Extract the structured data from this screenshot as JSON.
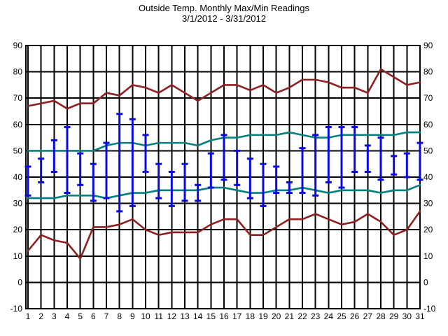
{
  "header": {
    "title": "Outside Temp. Monthly Max/Min Readings",
    "subtitle": "3/1/2012 - 3/31/2012"
  },
  "colors": {
    "background": "#ffffff",
    "grid": "#000000",
    "text": "#000000",
    "bar_blue": "#0a0ae0",
    "normal_teal": "#008080",
    "record_red": "#8f2020"
  },
  "chart_data": {
    "type": "line",
    "title": "Outside Temp. Monthly Max/Min Readings",
    "subtitle": "3/1/2012 - 3/31/2012",
    "xlabel": "",
    "ylabel": "",
    "ylim": [
      -10,
      90
    ],
    "grid": true,
    "legend": "none",
    "y_ticks": [
      90,
      80,
      70,
      60,
      50,
      40,
      30,
      20,
      10,
      0,
      -10
    ],
    "x_ticks": [
      "1",
      "2",
      "3",
      "4",
      "5",
      "6",
      "7",
      "8",
      "9",
      "10",
      "11",
      "12",
      "13",
      "14",
      "15",
      "16",
      "17",
      "18",
      "19",
      "20",
      "21",
      "22",
      "23",
      "24",
      "25",
      "26",
      "27",
      "28",
      "29",
      "30",
      "31"
    ],
    "series": [
      {
        "name": "record_high",
        "label": "upper dark red line (monthly max curve)",
        "color": "#8f2020",
        "values": [
          67,
          68,
          69,
          66,
          68,
          68,
          72,
          71,
          75,
          74,
          72,
          75,
          72,
          69,
          72,
          75,
          75,
          73,
          75,
          72,
          74,
          77,
          77,
          76,
          74,
          74,
          72,
          81,
          78,
          75,
          76
        ]
      },
      {
        "name": "normal_high",
        "label": "upper teal line",
        "color": "#008080",
        "values": [
          50,
          50,
          50,
          50,
          50,
          50,
          52,
          53,
          53,
          52,
          53,
          53,
          53,
          52,
          54,
          55,
          55,
          56,
          56,
          56,
          57,
          56,
          55,
          55,
          56,
          56,
          56,
          56,
          56,
          57,
          57
        ]
      },
      {
        "name": "normal_low",
        "label": "lower teal line",
        "color": "#008080",
        "values": [
          32,
          32,
          32,
          33,
          33,
          33,
          32,
          33,
          34,
          34,
          35,
          35,
          35,
          35,
          36,
          36,
          35,
          34,
          34,
          35,
          35,
          36,
          35,
          34,
          35,
          35,
          35,
          34,
          35,
          35,
          37
        ]
      },
      {
        "name": "record_low",
        "label": "lower dark red line (monthly min curve)",
        "color": "#8f2020",
        "values": [
          12,
          18,
          16,
          15,
          9,
          21,
          21,
          22,
          24,
          20,
          18,
          19,
          19,
          19,
          22,
          24,
          24,
          18,
          18,
          21,
          24,
          24,
          26,
          24,
          22,
          23,
          26,
          23,
          18,
          20,
          27
        ]
      }
    ],
    "error_bars": {
      "name": "daily_max_min_range",
      "label": "blue daily max/min range bars",
      "color": "#0a0ae0",
      "max": [
        44,
        47,
        54,
        59,
        49,
        45,
        53,
        64,
        62,
        56,
        45,
        42,
        45,
        37,
        49,
        56,
        50,
        47,
        45,
        44,
        38,
        51,
        56,
        59,
        59,
        59,
        52,
        55,
        48,
        49,
        53
      ],
      "min": [
        33,
        38,
        42,
        34,
        37,
        31,
        32,
        27,
        29,
        42,
        32,
        29,
        31,
        31,
        36,
        39,
        37,
        32,
        29,
        34,
        34,
        34,
        33,
        38,
        36,
        42,
        42,
        39,
        41,
        40,
        39
      ]
    }
  }
}
